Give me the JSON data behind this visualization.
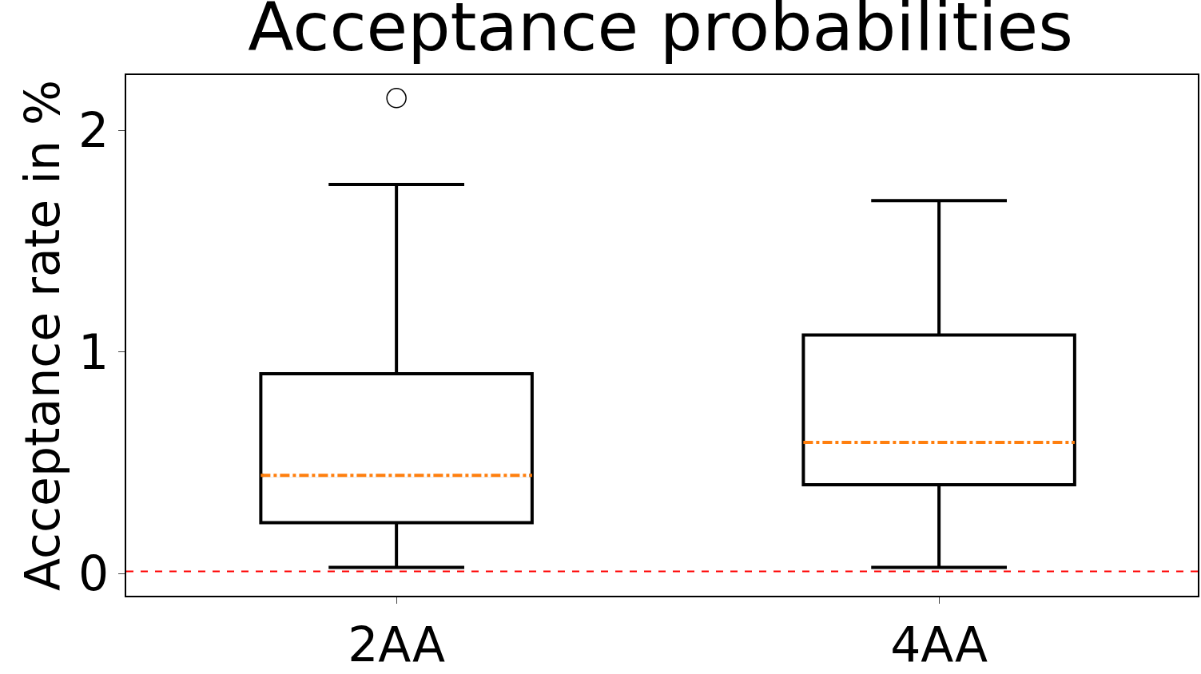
{
  "chart_data": {
    "type": "box",
    "title": "Acceptance probabilities",
    "ylabel": "Acceptance rate in %",
    "categories": [
      "2AA",
      "4AA"
    ],
    "series": [
      {
        "color": "#000000",
        "boxes": [
          {
            "low": 0.028,
            "q1": 0.23,
            "median": 0.443,
            "q3": 0.902,
            "high": 1.756,
            "outliers": [
              2.146
            ]
          },
          {
            "low": 0.028,
            "q1": 0.401,
            "median": 0.592,
            "q3": 1.077,
            "high": 1.683
          }
        ]
      }
    ],
    "ylim": [
      -0.1,
      2.25
    ],
    "yticks": [
      0,
      1,
      2
    ],
    "ref_lines": [
      {
        "axis": "y",
        "value": 0.01,
        "color": "#ff0000",
        "line_style": "dashed"
      }
    ]
  }
}
